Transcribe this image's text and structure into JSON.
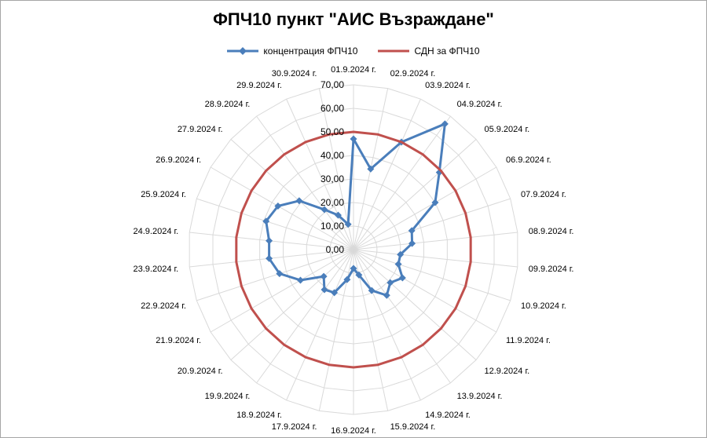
{
  "chart_data": {
    "type": "radar",
    "title": "ФПЧ10 пункт \"АИС Възраждане\"",
    "categories": [
      "01.9.2024 г.",
      "02.9.2024 г.",
      "03.9.2024 г.",
      "04.9.2024 г.",
      "05.9.2024 г.",
      "06.9.2024 г.",
      "07.9.2024 г.",
      "08.9.2024 г.",
      "09.9.2024 г.",
      "10.9.2024 г.",
      "11.9.2024 г.",
      "12.9.2024 г.",
      "13.9.2024 г.",
      "14.9.2024 г.",
      "15.9.2024 г.",
      "16.9.2024 г.",
      "17.9.2024 г.",
      "18.9.2024 г.",
      "19.9.2024 г.",
      "20.9.2024 г.",
      "21.9.2024 г.",
      "22.9.2024 г.",
      "23.9.2024 г.",
      "24.9.2024 г.",
      "25.9.2024 г.",
      "26.9.2024 г.",
      "27.9.2024 г.",
      "28.9.2024 г.",
      "29.9.2024 г.",
      "30.9.2024 г."
    ],
    "series": [
      {
        "name": "концентрация ФПЧ10",
        "color": "#4a7ebb",
        "marker": "diamond",
        "values": [
          47,
          35,
          50,
          66,
          49,
          40,
          26,
          25,
          20,
          20,
          24,
          21,
          24,
          19,
          11,
          8,
          13,
          20,
          21,
          17,
          26,
          33,
          36,
          36,
          39,
          37,
          31,
          21,
          16,
          11
        ]
      },
      {
        "name": "СДН за ФПЧ10",
        "color": "#c0504d",
        "marker": "none",
        "values": [
          50,
          50,
          50,
          50,
          50,
          50,
          50,
          50,
          50,
          50,
          50,
          50,
          50,
          50,
          50,
          50,
          50,
          50,
          50,
          50,
          50,
          50,
          50,
          50,
          50,
          50,
          50,
          50,
          50,
          50
        ]
      }
    ],
    "r_axis": {
      "min": 0,
      "max": 70,
      "step": 10,
      "tick_labels": [
        "0,00",
        "10,00",
        "20,00",
        "30,00",
        "40,00",
        "50,00",
        "60,00",
        "70,00"
      ]
    },
    "legend_position": "top",
    "grid": true
  }
}
